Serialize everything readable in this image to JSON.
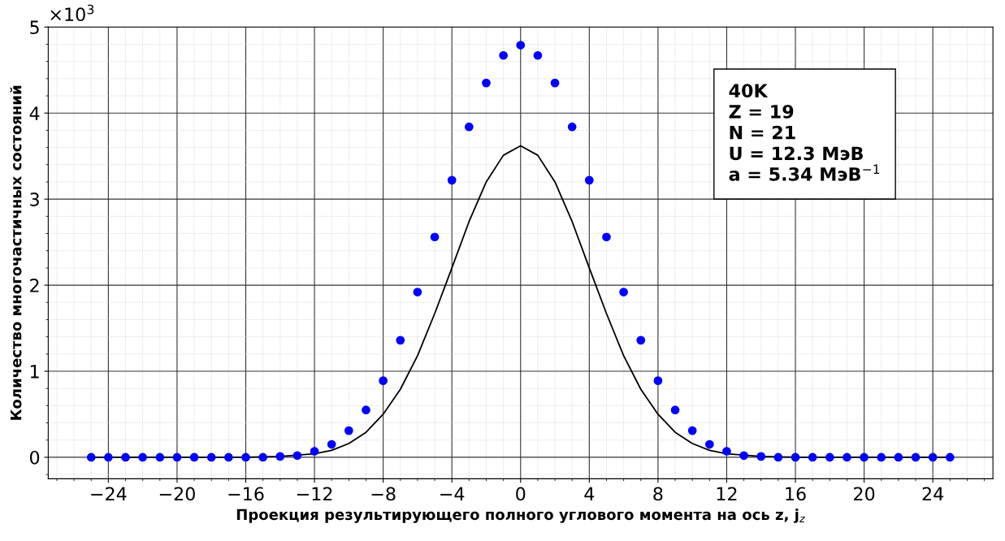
{
  "chart_data": {
    "type": "scatter",
    "xlabel": "Проекция результирующего полного углового момента на ось z, j$_{z}$",
    "ylabel": "Количество многочастичных состояний",
    "x": [
      -25,
      -24,
      -23,
      -22,
      -21,
      -20,
      -19,
      -18,
      -17,
      -16,
      -15,
      -14,
      -13,
      -12,
      -11,
      -10,
      -9,
      -8,
      -7,
      -6,
      -5,
      -4,
      -3,
      -2,
      -1,
      0,
      1,
      2,
      3,
      4,
      5,
      6,
      7,
      8,
      9,
      10,
      11,
      12,
      13,
      14,
      15,
      16,
      17,
      18,
      19,
      20,
      21,
      22,
      23,
      24,
      25
    ],
    "series": [
      {
        "color": "#0000ff",
        "marker": "circle",
        "values": [
          0,
          0,
          0,
          0,
          0,
          0,
          0,
          0,
          0,
          0,
          0,
          0.01,
          0.02,
          0.07,
          0.15,
          0.31,
          0.55,
          0.89,
          1.36,
          1.92,
          2.56,
          3.22,
          3.84,
          4.35,
          4.67,
          4.79,
          4.67,
          4.35,
          3.84,
          3.22,
          2.56,
          1.92,
          1.36,
          0.89,
          0.55,
          0.31,
          0.15,
          0.07,
          0.02,
          0.01,
          0,
          0,
          0,
          0,
          0,
          0,
          0,
          0,
          0,
          0,
          0
        ]
      },
      {
        "type": "line",
        "color": "#000000",
        "marker": "none",
        "line_style": "solid",
        "x": [
          -25,
          -20,
          -16,
          -14,
          -12,
          -11,
          -10,
          -9,
          -8,
          -7,
          -6,
          -5,
          -4,
          -3,
          -2,
          -1,
          0,
          1,
          2,
          3,
          4,
          5,
          6,
          7,
          8,
          9,
          10,
          11,
          12,
          14,
          16,
          20,
          25
        ],
        "values": [
          0,
          0,
          0,
          0.01,
          0.04,
          0.08,
          0.16,
          0.29,
          0.5,
          0.79,
          1.18,
          1.67,
          2.2,
          2.74,
          3.2,
          3.51,
          3.62,
          3.51,
          3.2,
          2.74,
          2.2,
          1.67,
          1.18,
          0.79,
          0.5,
          0.29,
          0.16,
          0.08,
          0.04,
          0.01,
          0,
          0,
          0
        ]
      }
    ],
    "xlim": [
      -27.5,
      27.5
    ],
    "xticks": [
      {
        "value": -24,
        "label": "−24"
      },
      {
        "value": -20,
        "label": "−20"
      },
      {
        "value": -16,
        "label": "−16"
      },
      {
        "value": -12,
        "label": "−12"
      },
      {
        "value": -8,
        "label": "−8"
      },
      {
        "value": -4,
        "label": "−4"
      },
      0,
      4,
      8,
      12,
      16,
      20,
      24
    ],
    "ylim": [
      -0.25,
      5
    ],
    "yticks": [
      0,
      1,
      2,
      3,
      4,
      5
    ],
    "grid": true,
    "annotations": [
      "×10$^{3}$",
      "40K\nZ = 19\nN = 21\nU = 12.3 МэВ\na = 5.34 МэВ$^{−1}$"
    ]
  }
}
